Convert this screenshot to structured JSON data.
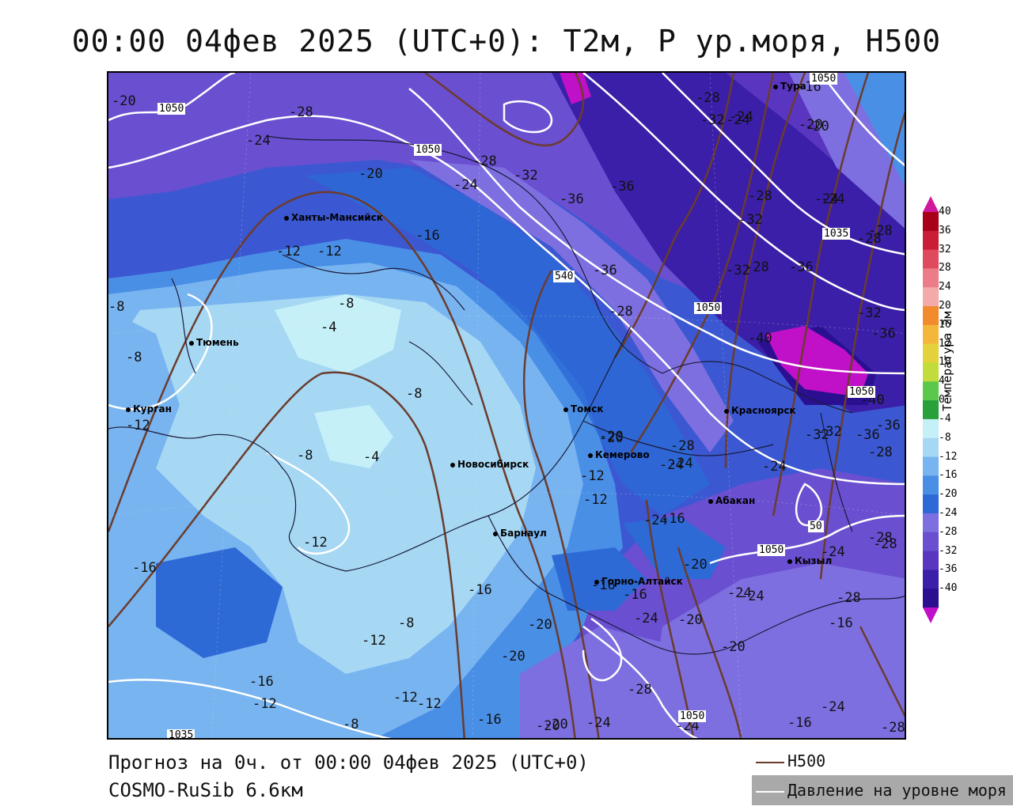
{
  "title": "00:00 04фев 2025 (UTC+0): T2м, P ур.моря, H500",
  "footer": {
    "line1": "Прогноз на 0ч. от 00:00 04фев 2025 (UTC+0)",
    "line2": "COSMO-RuSib 6.6км"
  },
  "legend": {
    "h500": "H500",
    "pressure": "Давление на уровне моря"
  },
  "colorbar": {
    "title": "Температура 2м",
    "ticks": [
      "40",
      "36",
      "32",
      "28",
      "24",
      "20",
      "16",
      "12",
      "10",
      "4",
      "0",
      "-4",
      "-8",
      "-12",
      "-16",
      "-20",
      "-24",
      "-28",
      "-32",
      "-36",
      "-40"
    ],
    "colors": [
      "#a80018",
      "#c81e36",
      "#e04a5e",
      "#ec7d88",
      "#f4aaa8",
      "#f28b2e",
      "#f5b63c",
      "#e3d23c",
      "#c2dc3c",
      "#5ac84a",
      "#2aa03a",
      "#c6f0f8",
      "#a6d8f4",
      "#78b4f0",
      "#4a8fe6",
      "#2d6ad6",
      "#7d6fe0",
      "#6a4fd0",
      "#5a36c0",
      "#3b1fa8",
      "#2a1090"
    ],
    "accent_top": "#d0189c",
    "accent_bottom": "#c010c8"
  },
  "cities": [
    {
      "name": "Тура"
    },
    {
      "name": "Ханты-Мансийск"
    },
    {
      "name": "Тюмень"
    },
    {
      "name": "Курган"
    },
    {
      "name": "Томск"
    },
    {
      "name": "Красноярск"
    },
    {
      "name": "Кемерово"
    },
    {
      "name": "Новосибирск"
    },
    {
      "name": "Абакан"
    },
    {
      "name": "Барнаул"
    },
    {
      "name": "Горно-Алтайск"
    },
    {
      "name": "Кызыл"
    }
  ],
  "temp_labels": [
    "-20",
    "-28",
    "-24",
    "-20",
    "-16",
    "-12",
    "-12",
    "-8",
    "-8",
    "-4",
    "-8",
    "-12",
    "-4",
    "-8",
    "-12",
    "-16",
    "-12",
    "-8",
    "-12",
    "-16",
    "-12",
    "-8",
    "-16",
    "-20",
    "-16",
    "-20",
    "-24",
    "-28",
    "-32",
    "-36",
    "-36",
    "-28",
    "-32",
    "-24",
    "-16",
    "-20",
    "-24",
    "-28",
    "-32",
    "-36",
    "-40",
    "-36",
    "-32",
    "-28",
    "-24",
    "-20",
    "-28",
    "-24",
    "-28",
    "-32",
    "-36",
    "-24",
    "-28",
    "-24",
    "-20",
    "-28",
    "-24",
    "-28",
    "-24",
    "-20",
    "-16",
    "-12",
    "-16",
    "-20",
    "-24",
    "-20",
    "-24",
    "-28",
    "-24",
    "-28",
    "-16",
    "-20",
    "-16",
    "-24",
    "-20",
    "-12",
    "-12",
    "-24",
    "-28",
    "-8",
    "-20",
    "-24",
    "-32",
    "-36",
    "-28",
    "-28",
    "-36",
    "-32",
    "-16",
    "-40",
    "-24"
  ],
  "pressure_labels": [
    "1050",
    "1050",
    "540",
    "1050",
    "1035",
    "1050",
    "1050",
    "1050",
    "1050",
    "1035",
    "50"
  ]
}
